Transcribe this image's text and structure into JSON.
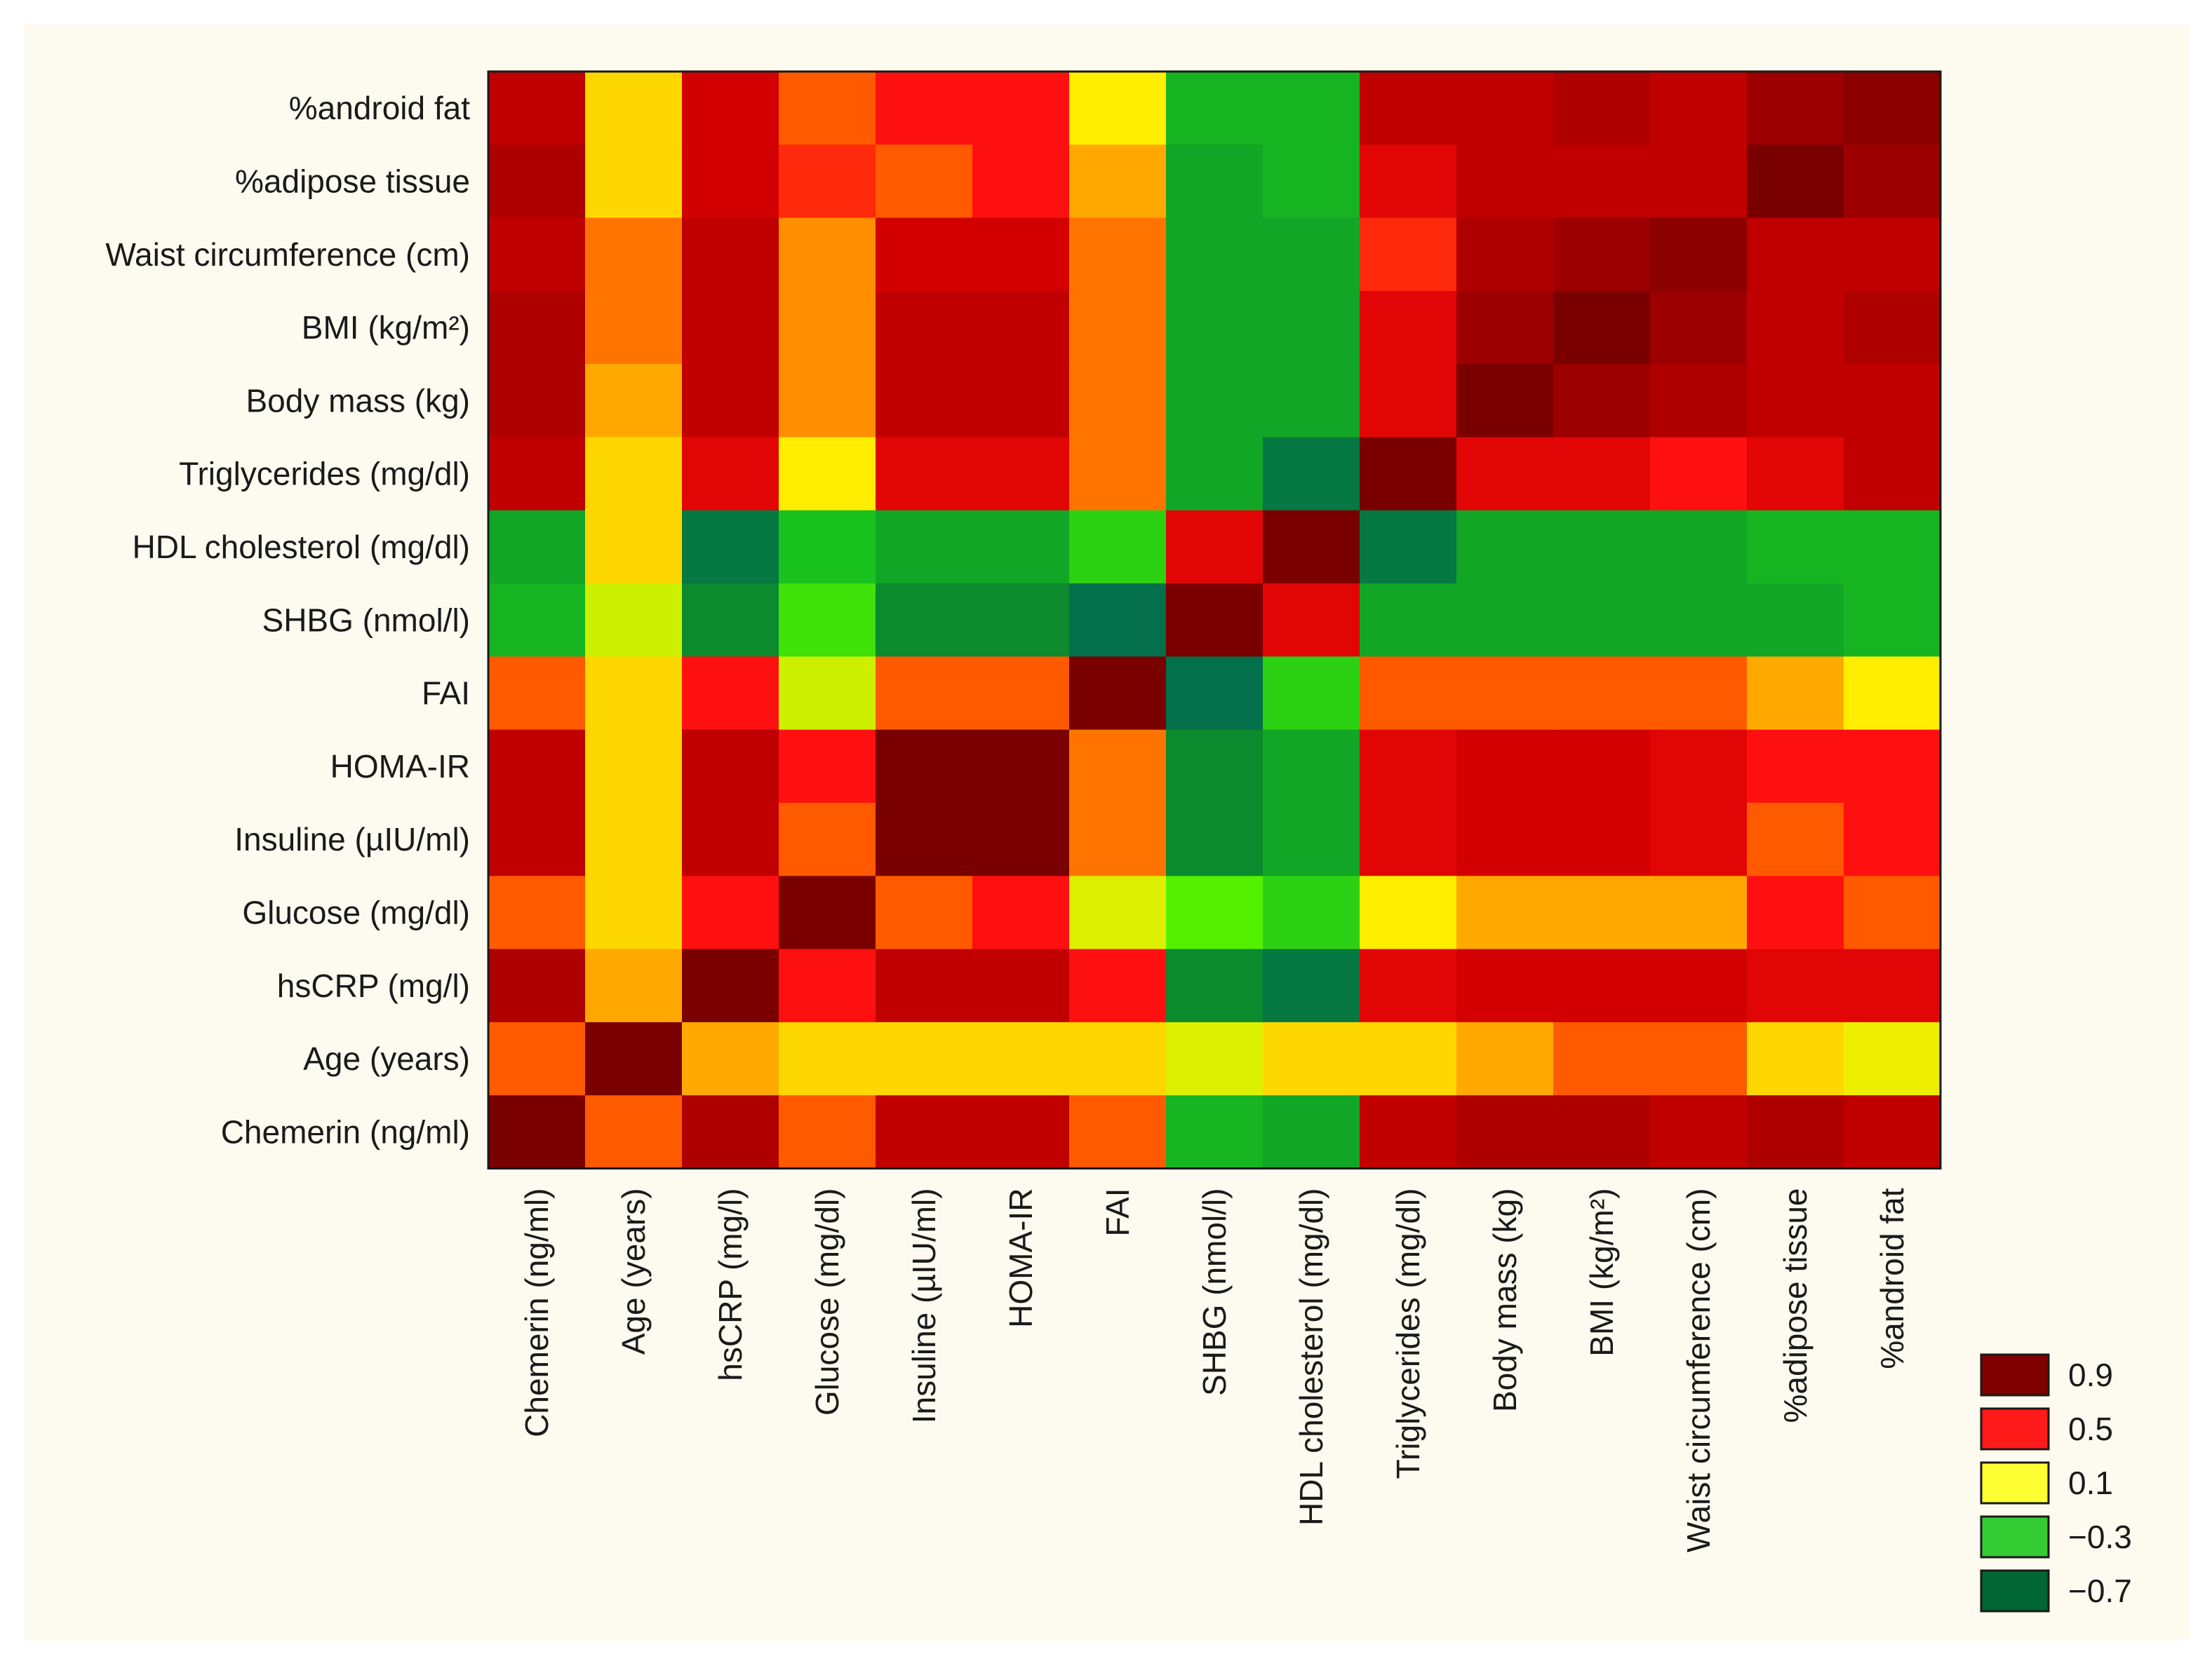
{
  "chart_data": {
    "type": "heatmap",
    "title": "",
    "xlabel": "",
    "ylabel": "",
    "x_categories": [
      "Chemerin (ng/ml)",
      "Age (years)",
      "hsCRP (mg/l)",
      "Glucose (mg/dl)",
      "Insuline (µIU/ml)",
      "HOMA-IR",
      "FAI",
      "SHBG (nmol/l)",
      "HDL cholesterol (mg/dl)",
      "Triglycerides (mg/dl)",
      "Body mass (kg)",
      "BMI (kg/m²)",
      "Waist circumference (cm)",
      "%adipose tissue",
      "%android fat"
    ],
    "y_categories": [
      "%android fat",
      "%adipose tissue",
      "Waist circumference (cm)",
      "BMI (kg/m²)",
      "Body mass (kg)",
      "Triglycerides (mg/dl)",
      "HDL cholesterol (mg/dl)",
      "SHBG (nmol/l)",
      "FAI",
      "HOMA-IR",
      "Insuline (µIU/ml)",
      "Glucose (mg/dl)",
      "hsCRP (mg/l)",
      "Age (years)",
      "Chemerin (ng/ml)"
    ],
    "values": [
      [
        0.75,
        0.15,
        0.7,
        0.4,
        0.55,
        0.55,
        0.1,
        -0.35,
        -0.35,
        0.75,
        0.75,
        0.8,
        0.75,
        0.85,
        0.9
      ],
      [
        0.8,
        0.15,
        0.7,
        0.5,
        0.4,
        0.55,
        0.25,
        -0.4,
        -0.35,
        0.65,
        0.75,
        0.75,
        0.75,
        0.95,
        0.85
      ],
      [
        0.75,
        0.35,
        0.75,
        0.3,
        0.7,
        0.7,
        0.35,
        -0.4,
        -0.4,
        0.5,
        0.8,
        0.85,
        0.9,
        0.75,
        0.75
      ],
      [
        0.8,
        0.35,
        0.75,
        0.3,
        0.75,
        0.75,
        0.35,
        -0.4,
        -0.4,
        0.65,
        0.85,
        0.95,
        0.85,
        0.75,
        0.8
      ],
      [
        0.8,
        0.25,
        0.75,
        0.3,
        0.75,
        0.75,
        0.35,
        -0.4,
        -0.4,
        0.65,
        0.95,
        0.85,
        0.8,
        0.75,
        0.75
      ],
      [
        0.75,
        0.15,
        0.65,
        0.1,
        0.65,
        0.65,
        0.35,
        -0.4,
        -0.6,
        0.95,
        0.65,
        0.65,
        0.55,
        0.65,
        0.75
      ],
      [
        -0.4,
        0.15,
        -0.6,
        -0.3,
        -0.4,
        -0.4,
        -0.25,
        0.65,
        0.95,
        -0.6,
        -0.4,
        -0.4,
        -0.4,
        -0.35,
        -0.35
      ],
      [
        -0.35,
        -0.05,
        -0.5,
        -0.2,
        -0.5,
        -0.5,
        -0.65,
        0.95,
        0.65,
        -0.4,
        -0.4,
        -0.4,
        -0.4,
        -0.4,
        -0.35
      ],
      [
        0.4,
        0.15,
        0.55,
        -0.05,
        0.4,
        0.4,
        0.95,
        -0.65,
        -0.25,
        0.4,
        0.4,
        0.4,
        0.4,
        0.25,
        0.1
      ],
      [
        0.75,
        0.15,
        0.75,
        0.55,
        0.95,
        0.95,
        0.35,
        -0.5,
        -0.4,
        0.65,
        0.7,
        0.7,
        0.65,
        0.55,
        0.55
      ],
      [
        0.75,
        0.15,
        0.75,
        0.4,
        0.95,
        0.95,
        0.35,
        -0.5,
        -0.4,
        0.65,
        0.7,
        0.7,
        0.65,
        0.4,
        0.55
      ],
      [
        0.4,
        0.15,
        0.55,
        0.95,
        0.4,
        0.55,
        0.0,
        -0.15,
        -0.25,
        0.1,
        0.25,
        0.25,
        0.25,
        0.55,
        0.4
      ],
      [
        0.8,
        0.25,
        0.95,
        0.55,
        0.75,
        0.75,
        0.55,
        -0.5,
        -0.6,
        0.65,
        0.7,
        0.7,
        0.7,
        0.65,
        0.65
      ],
      [
        0.4,
        0.95,
        0.25,
        0.15,
        0.15,
        0.15,
        0.15,
        0.0,
        0.15,
        0.15,
        0.25,
        0.4,
        0.4,
        0.15,
        0.05
      ],
      [
        0.95,
        0.4,
        0.8,
        0.4,
        0.75,
        0.75,
        0.4,
        -0.35,
        -0.4,
        0.75,
        0.8,
        0.8,
        0.75,
        0.8,
        0.75
      ]
    ],
    "legend": {
      "placement": "bottom-right",
      "entries": [
        {
          "label": "0.9",
          "color": "#800000"
        },
        {
          "label": "0.5",
          "color": "#ff1a1a"
        },
        {
          "label": "0.1",
          "color": "#ffff33"
        },
        {
          "label": "−0.3",
          "color": "#33cc33"
        },
        {
          "label": "−0.7",
          "color": "#006633"
        }
      ]
    },
    "color_scale": {
      "stops": [
        {
          "value": -0.7,
          "color": "#006655"
        },
        {
          "value": -0.5,
          "color": "#0b8a2e"
        },
        {
          "value": -0.3,
          "color": "#19c21d"
        },
        {
          "value": -0.15,
          "color": "#55f000"
        },
        {
          "value": -0.05,
          "color": "#ccf000"
        },
        {
          "value": 0.1,
          "color": "#ffee00"
        },
        {
          "value": 0.25,
          "color": "#ffa800"
        },
        {
          "value": 0.4,
          "color": "#ff5a00"
        },
        {
          "value": 0.55,
          "color": "#ff1010"
        },
        {
          "value": 0.7,
          "color": "#d20000"
        },
        {
          "value": 0.95,
          "color": "#7a0000"
        }
      ]
    }
  }
}
